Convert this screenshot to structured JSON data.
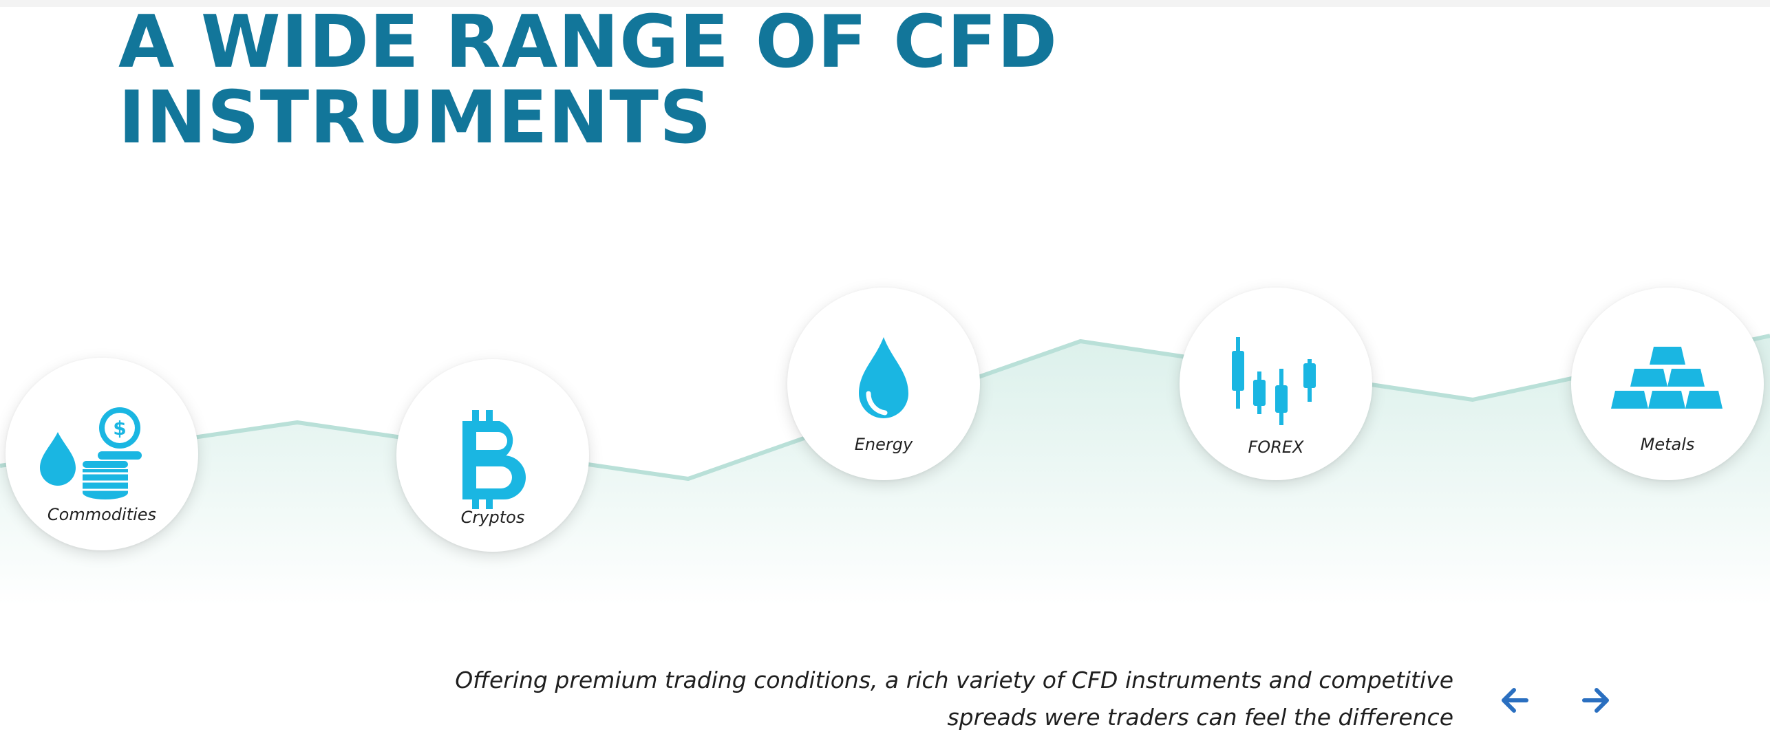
{
  "hero": {
    "title_line1": "A WIDE RANGE OF CFD",
    "title_line2": "INSTRUMENTS"
  },
  "instruments": [
    {
      "label": "Commodities",
      "icon": "oil-drop-coins-icon"
    },
    {
      "label": "Cryptos",
      "icon": "bitcoin-icon"
    },
    {
      "label": "Energy",
      "icon": "oil-drop-icon"
    },
    {
      "label": "FOREX",
      "icon": "candlestick-chart-icon"
    },
    {
      "label": "Metals",
      "icon": "gold-bars-icon"
    }
  ],
  "tagline": {
    "line1": "Offering premium trading conditions, a rich variety of CFD instruments and competitive",
    "line2": "spreads were traders can feel the difference"
  },
  "carousel": {
    "prev_icon": "arrow-left-icon",
    "next_icon": "arrow-right-icon"
  },
  "colors": {
    "title": "#12769a",
    "icon": "#1ab6e2",
    "line": "#b9e0d8",
    "arrow": "#2a6fc0"
  }
}
